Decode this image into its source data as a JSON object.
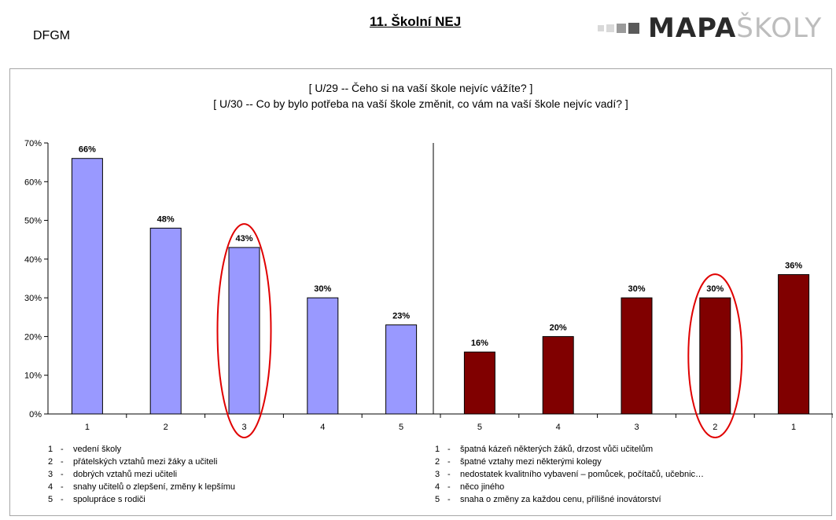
{
  "header": {
    "school_code": "DFGM",
    "title": "11. Školní NEJ",
    "logo": {
      "dark_text": "MAPA",
      "light_text": "ŠKOLY"
    }
  },
  "chart_data": {
    "type": "bar",
    "title_lines": [
      "[ U/29 -- Čeho si na vaší škole nejvíc vážíte? ]",
      "[ U/30 -- Co by bylo potřeba na vaší škole změnit, co vám na vaší škole nejvíc vadí? ]"
    ],
    "ylim": [
      0,
      70
    ],
    "yticks": [
      0,
      10,
      20,
      30,
      40,
      50,
      60,
      70
    ],
    "ytick_labels": [
      "0%",
      "10%",
      "20%",
      "30%",
      "40%",
      "50%",
      "60%",
      "70%"
    ],
    "grid": false,
    "categories": [
      "1",
      "2",
      "3",
      "4",
      "5",
      "5",
      "4",
      "3",
      "2",
      "1"
    ],
    "groups": [
      {
        "color": "#9999ff",
        "values": [
          66,
          48,
          43,
          30,
          23
        ],
        "labels": [
          "66%",
          "48%",
          "43%",
          "30%",
          "23%"
        ],
        "categories": [
          "1",
          "2",
          "3",
          "4",
          "5"
        ]
      },
      {
        "color": "#800000",
        "values": [
          16,
          20,
          30,
          30,
          36
        ],
        "labels": [
          "16%",
          "20%",
          "30%",
          "30%",
          "36%"
        ],
        "categories": [
          "5",
          "4",
          "3",
          "2",
          "1"
        ]
      }
    ],
    "highlighted": [
      {
        "group": 0,
        "index": 2
      },
      {
        "group": 1,
        "index": 3
      }
    ],
    "highlight_color": "#e00000"
  },
  "legend": {
    "left": [
      {
        "num": "1",
        "sep": "-",
        "text": "vedení školy"
      },
      {
        "num": "2",
        "sep": "-",
        "text": "přátelských vztahů mezi žáky a učiteli"
      },
      {
        "num": "3",
        "sep": "-",
        "text": "dobrých vztahů mezi učiteli"
      },
      {
        "num": "4",
        "sep": "-",
        "text": "snahy učitelů o zlepšení, změny k lepšímu"
      },
      {
        "num": "5",
        "sep": "-",
        "text": "spolupráce s rodiči"
      }
    ],
    "right": [
      {
        "num": "1",
        "sep": "-",
        "text": "špatná kázeň některých žáků, drzost vůči učitelům"
      },
      {
        "num": "2",
        "sep": "-",
        "text": "špatné vztahy mezi některými kolegy"
      },
      {
        "num": "3",
        "sep": "-",
        "text": "nedostatek kvalitního vybavení – pomůcek, počítačů, učebnic…"
      },
      {
        "num": "4",
        "sep": "-",
        "text": "něco jiného"
      },
      {
        "num": "5",
        "sep": "-",
        "text": "snaha o změny za každou cenu, přílišné inovátorství"
      }
    ]
  }
}
